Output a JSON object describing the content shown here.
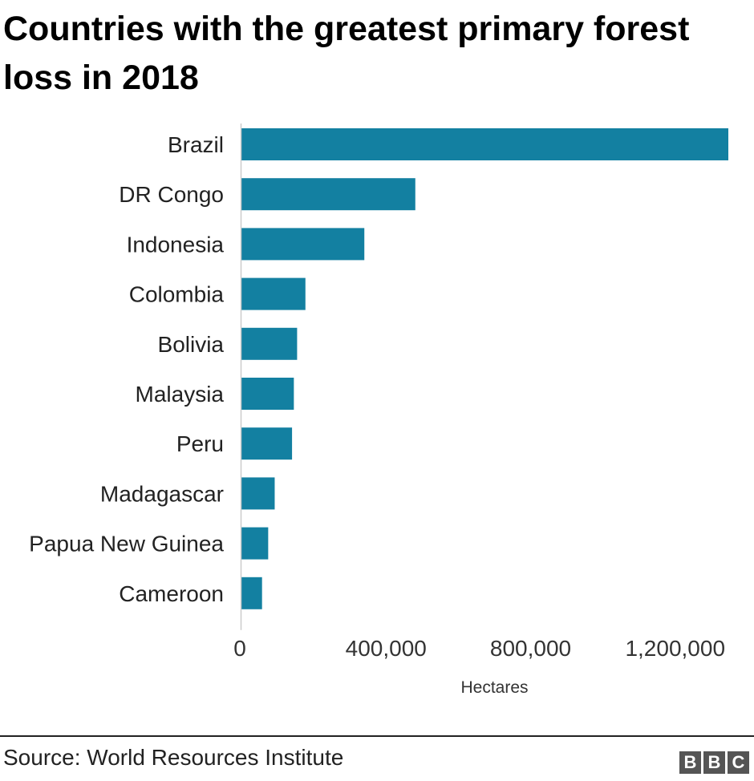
{
  "chart_data": {
    "type": "bar",
    "orientation": "horizontal",
    "title": "Countries with the greatest primary forest loss in 2018",
    "categories": [
      "Brazil",
      "DR Congo",
      "Indonesia",
      "Colombia",
      "Bolivia",
      "Malaysia",
      "Peru",
      "Madagascar",
      "Papua New Guinea",
      "Cameroon"
    ],
    "values": [
      1347000,
      481000,
      340000,
      177000,
      154000,
      145000,
      140000,
      92000,
      74000,
      57000
    ],
    "xlabel": "Hectares",
    "ylabel": "",
    "xlim": [
      0,
      1347000
    ],
    "xticks": [
      0,
      400000,
      800000,
      1200000
    ],
    "xtick_labels": [
      "0",
      "400,000",
      "800,000",
      "1,200,000"
    ],
    "grid": false,
    "bar_color": "#1380A1"
  },
  "footer": {
    "source": "Source: World Resources Institute",
    "logo_letters": [
      "B",
      "B",
      "C"
    ]
  }
}
